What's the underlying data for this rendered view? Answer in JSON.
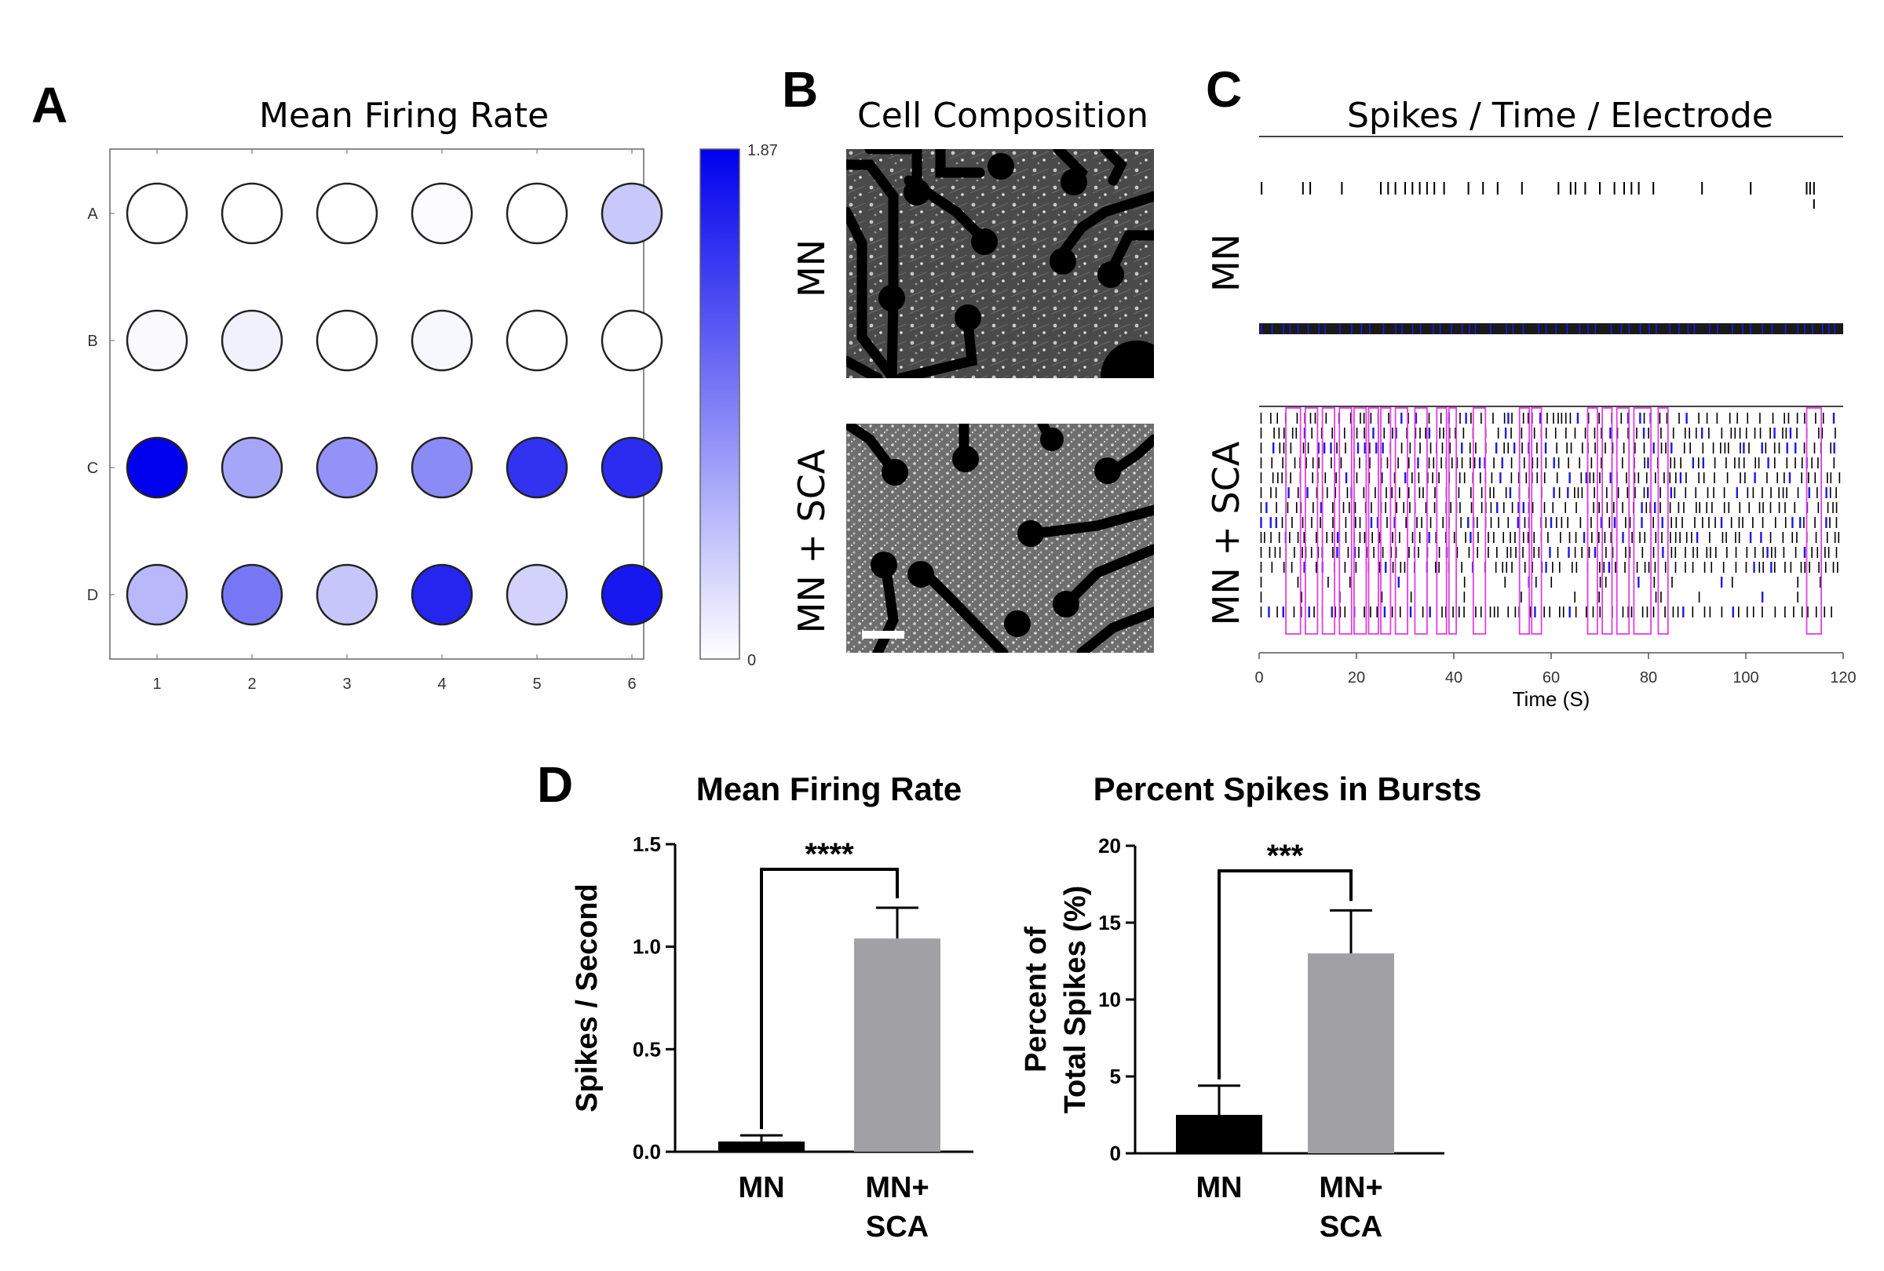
{
  "panel_letters": {
    "a": "A",
    "b": "B",
    "c": "C",
    "d": "D"
  },
  "colors": {
    "heat_max": "#0000ee",
    "heat_min": "#ffffff",
    "bar_mn": "#000000",
    "bar_sca": "#a0a0a5",
    "burst_box": "#e040e0",
    "spike_blue": "#1a1ae6"
  },
  "chart_data": [
    {
      "id": "A",
      "type": "heatmap",
      "title": "Mean Firing Rate",
      "rows": [
        "A",
        "B",
        "C",
        "D"
      ],
      "columns": [
        "1",
        "2",
        "3",
        "4",
        "5",
        "6"
      ],
      "values": [
        [
          0.0,
          0.0,
          0.0,
          0.02,
          0.0,
          0.4
        ],
        [
          0.04,
          0.1,
          0.0,
          0.06,
          0.0,
          0.0
        ],
        [
          1.87,
          0.65,
          0.8,
          0.85,
          1.5,
          1.55
        ],
        [
          0.52,
          1.0,
          0.42,
          1.6,
          0.33,
          1.7
        ]
      ],
      "colorbar": {
        "min": 0,
        "max": 1.87,
        "min_label": "0",
        "max_label": "1.87"
      }
    },
    {
      "id": "C",
      "type": "scatter",
      "title": "Spikes / Time / Electrode",
      "xlabel": "Time (S)",
      "xlim": [
        0,
        120
      ],
      "xticks": [
        0,
        20,
        40,
        60,
        80,
        100,
        120
      ],
      "groups": [
        {
          "label": "MN",
          "sparse_spike_times": [
            0.5,
            9,
            10.5,
            17,
            25,
            26.5,
            28,
            30,
            31.5,
            33,
            34.5,
            36,
            38,
            43,
            46,
            49,
            54,
            61.5,
            64,
            65,
            67,
            70,
            73,
            75,
            76.5,
            78,
            81,
            91,
            101,
            112.5,
            113.2,
            114
          ]
        },
        {
          "label": "MN + SCA",
          "burst_windows": [
            [
              5.5,
              8.5
            ],
            [
              9.5,
              12
            ],
            [
              13,
              15.5
            ],
            [
              16.5,
              19
            ],
            [
              19.5,
              22
            ],
            [
              22.5,
              24.5
            ],
            [
              25,
              27
            ],
            [
              28,
              30.5
            ],
            [
              32,
              34.5
            ],
            [
              36.5,
              38.5
            ],
            [
              39,
              40.5
            ],
            [
              44,
              46.5
            ],
            [
              53.5,
              55.5
            ],
            [
              56,
              58
            ],
            [
              67.5,
              69.5
            ],
            [
              70.5,
              72.5
            ],
            [
              73.5,
              76
            ],
            [
              77,
              80.5
            ],
            [
              82,
              84
            ],
            [
              112.5,
              115.5
            ]
          ]
        }
      ]
    },
    {
      "id": "D1",
      "type": "bar",
      "title": "Mean Firing Rate",
      "ylabel": "Spikes / Second",
      "categories": [
        "MN",
        "MN+SCA"
      ],
      "category_lines": [
        [
          "MN"
        ],
        [
          "MN+",
          "SCA"
        ]
      ],
      "values": [
        0.05,
        1.04
      ],
      "errors": [
        0.03,
        0.15
      ],
      "ylim": [
        0,
        1.5
      ],
      "yticks": [
        "0.0",
        "0.5",
        "1.0",
        "1.5"
      ],
      "significance": "****"
    },
    {
      "id": "D2",
      "type": "bar",
      "title": "Percent Spikes in Bursts",
      "ylabel_lines": [
        "Percent of",
        "Total Spikes  (%)"
      ],
      "categories": [
        "MN",
        "MN+SCA"
      ],
      "category_lines": [
        [
          "MN"
        ],
        [
          "MN+",
          "SCA"
        ]
      ],
      "values": [
        2.5,
        13.0
      ],
      "errors": [
        1.9,
        2.8
      ],
      "ylim": [
        0,
        20
      ],
      "yticks": [
        "0",
        "5",
        "10",
        "15",
        "20"
      ],
      "significance": "***"
    }
  ],
  "panel_b": {
    "title": "Cell Composition",
    "labels": [
      "MN",
      "MN + SCA"
    ]
  }
}
